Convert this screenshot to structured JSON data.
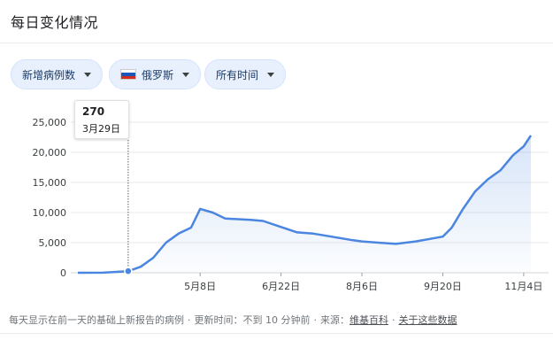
{
  "header": {
    "title": "每日变化情况"
  },
  "filters": {
    "metric": "新增病例数",
    "country": "俄罗斯",
    "range": "所有时间"
  },
  "colors": {
    "line": "#4a86e0",
    "chip_bg": "#e8f0fe",
    "grid": "#eaeaea"
  },
  "tooltip": {
    "value": "270",
    "date": "3月29日"
  },
  "footer": {
    "note": "每天显示在前一天的基础上新报告的病例",
    "updated": "更新时间：不到 10 分钟前",
    "source_label": "来源：",
    "source_link": "维基百科",
    "about_link": "关于这些数据"
  },
  "chart_data": {
    "type": "area",
    "ylim": [
      0,
      25000
    ],
    "yticks": [
      "0",
      "5,000",
      "10,000",
      "15,000",
      "20,000",
      "25,000"
    ],
    "xticks": [
      "5月8日",
      "6月22日",
      "8月6日",
      "9月20日",
      "11月4日"
    ],
    "series": [
      {
        "x": [
          "3月1日",
          "3月15日",
          "3月29日",
          "4月5日",
          "4月12日",
          "4月19日",
          "4月26日",
          "5月3日",
          "5月8日",
          "5月15日",
          "5月22日",
          "5月29日",
          "6月5日",
          "6月12日",
          "6月22日",
          "7月1日",
          "7月10日",
          "7月20日",
          "8月1日",
          "8月6日",
          "8月15日",
          "8月25日",
          "9月5日",
          "9月20日",
          "9月25日",
          "10月1日",
          "10月8日",
          "10月15日",
          "10月22日",
          "10月29日",
          "11月4日",
          "11月8日"
        ],
        "values": [
          0,
          10,
          270,
          1000,
          2500,
          5000,
          6500,
          7500,
          10600,
          10000,
          9000,
          8900,
          8800,
          8600,
          7600,
          6700,
          6500,
          6000,
          5400,
          5200,
          5000,
          4800,
          5200,
          6000,
          7500,
          10500,
          13500,
          15500,
          17000,
          19500,
          21000,
          22800
        ]
      }
    ],
    "highlight": {
      "x": "3月29日",
      "value": 270
    }
  }
}
